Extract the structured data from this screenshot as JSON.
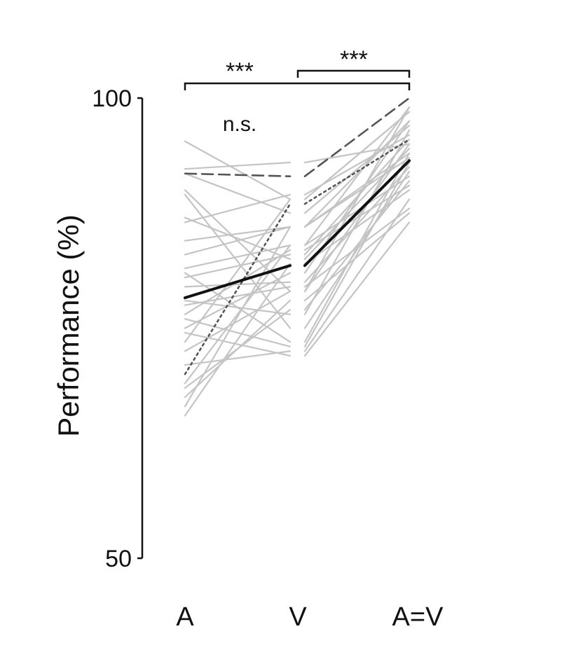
{
  "chart_data": {
    "type": "line",
    "title": "",
    "ylabel": "Performance (%)",
    "xlabel": "",
    "categories": [
      "A",
      "V",
      "A=V"
    ],
    "ylim": [
      50,
      100
    ],
    "yticks": [
      50,
      100
    ],
    "grid": false,
    "legend": "none",
    "colors": {
      "subject": "#c4c4c4",
      "mean": "#111111",
      "highlight": "#555555"
    },
    "comparisons": [
      {
        "from": "A",
        "to": "A=V",
        "label": "***"
      },
      {
        "from": "V",
        "to": "A=V",
        "label": "***"
      },
      {
        "from": "A",
        "to": "V",
        "label": "n.s."
      }
    ],
    "subjects": [
      {
        "a": 95.3,
        "v": 89.0,
        "av": 98.5
      },
      {
        "a": 92.3,
        "v": 93.0,
        "av": 95.0
      },
      {
        "a": 91.8,
        "v": 87.5,
        "av": 97.0
      },
      {
        "a": 90.0,
        "v": 79.0,
        "av": 99.0
      },
      {
        "a": 89.5,
        "v": 75.0,
        "av": 92.0
      },
      {
        "a": 87.0,
        "v": 82.5,
        "av": 94.5
      },
      {
        "a": 86.5,
        "v": 89.5,
        "av": 96.0
      },
      {
        "a": 84.5,
        "v": 86.0,
        "av": 97.5
      },
      {
        "a": 83.0,
        "v": 86.0,
        "av": 93.5
      },
      {
        "a": 81.5,
        "v": 84.0,
        "av": 91.5
      },
      {
        "a": 81.0,
        "v": 73.5,
        "av": 94.0
      },
      {
        "a": 80.5,
        "v": 83.0,
        "av": 95.5
      },
      {
        "a": 79.5,
        "v": 80.0,
        "av": 92.5
      },
      {
        "a": 78.0,
        "v": 76.5,
        "av": 96.5
      },
      {
        "a": 77.5,
        "v": 79.5,
        "av": 88.0
      },
      {
        "a": 76.5,
        "v": 83.5,
        "av": 90.5
      },
      {
        "a": 76.0,
        "v": 73.0,
        "av": 93.0
      },
      {
        "a": 75.0,
        "v": 81.0,
        "av": 97.5
      },
      {
        "a": 74.5,
        "v": 72.0,
        "av": 86.5
      },
      {
        "a": 73.5,
        "v": 89.0,
        "av": 98.5
      },
      {
        "a": 72.5,
        "v": 79.0,
        "av": 95.0
      },
      {
        "a": 71.0,
        "v": 72.5,
        "av": 89.0
      },
      {
        "a": 69.0,
        "v": 84.0,
        "av": 99.0
      },
      {
        "a": 68.5,
        "v": 77.0,
        "av": 91.0
      },
      {
        "a": 67.5,
        "v": 78.0,
        "av": 87.5
      },
      {
        "a": 66.5,
        "v": 86.0,
        "av": 94.0
      },
      {
        "a": 65.5,
        "v": 82.0,
        "av": 90.0
      }
    ],
    "highlighted": [
      {
        "style": "dashed",
        "a": 91.8,
        "v": 91.5,
        "av": 100.0
      },
      {
        "style": "dotted",
        "a": 70.0,
        "v": 88.5,
        "av": 95.5
      }
    ],
    "mean": {
      "a": 78.3,
      "v": 81.8,
      "av": 93.2
    }
  }
}
